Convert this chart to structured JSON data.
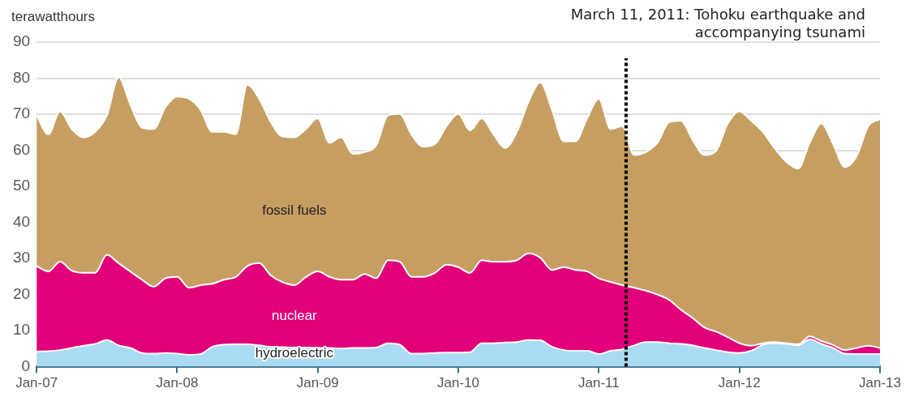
{
  "chart_data": {
    "type": "area",
    "stacked": true,
    "ylabel": "terawatthours",
    "grid": "y",
    "legend": false,
    "x": [
      "2007-01",
      "2007-02",
      "2007-03",
      "2007-04",
      "2007-05",
      "2007-06",
      "2007-07",
      "2007-08",
      "2007-09",
      "2007-10",
      "2007-11",
      "2007-12",
      "2008-01",
      "2008-02",
      "2008-03",
      "2008-04",
      "2008-05",
      "2008-06",
      "2008-07",
      "2008-08",
      "2008-09",
      "2008-10",
      "2008-11",
      "2008-12",
      "2009-01",
      "2009-02",
      "2009-03",
      "2009-04",
      "2009-05",
      "2009-06",
      "2009-07",
      "2009-08",
      "2009-09",
      "2009-10",
      "2009-11",
      "2009-12",
      "2010-01",
      "2010-02",
      "2010-03",
      "2010-04",
      "2010-05",
      "2010-06",
      "2010-07",
      "2010-08",
      "2010-09",
      "2010-10",
      "2010-11",
      "2010-12",
      "2011-01",
      "2011-02",
      "2011-03",
      "2011-04",
      "2011-05",
      "2011-06",
      "2011-07",
      "2011-08",
      "2011-09",
      "2011-10",
      "2011-11",
      "2011-12",
      "2012-01",
      "2012-02",
      "2012-03",
      "2012-04",
      "2012-05",
      "2012-06",
      "2012-07",
      "2012-08",
      "2012-09",
      "2012-10",
      "2012-11",
      "2012-12",
      "2013-01"
    ],
    "series": [
      {
        "name": "hydroelectric",
        "color": "#a9dbf3",
        "values": [
          4.2,
          4.3,
          4.6,
          5.2,
          5.8,
          6.3,
          7.4,
          5.9,
          5.2,
          3.8,
          3.6,
          3.8,
          3.6,
          3.3,
          3.5,
          5.5,
          6.1,
          6.2,
          6.2,
          5.9,
          5.5,
          5.4,
          5.3,
          5.3,
          5.2,
          5.2,
          5.0,
          5.2,
          5.2,
          5.3,
          6.5,
          6.1,
          3.6,
          3.6,
          3.8,
          3.9,
          3.9,
          4.0,
          6.5,
          6.5,
          6.7,
          6.8,
          7.4,
          7.3,
          5.5,
          4.6,
          4.4,
          4.4,
          3.5,
          4.4,
          4.8,
          5.9,
          6.8,
          6.8,
          6.5,
          6.3,
          5.9,
          5.2,
          4.6,
          4.0,
          3.8,
          4.4,
          6.1,
          6.5,
          6.3,
          5.9,
          7.6,
          6.3,
          5.2,
          3.6,
          3.5,
          3.5,
          3.5
        ]
      },
      {
        "name": "nuclear",
        "color": "#e2007a",
        "values": [
          23.7,
          22.1,
          24.5,
          21.4,
          20.2,
          19.7,
          23.6,
          22.8,
          21.2,
          20.3,
          18.6,
          20.7,
          21.3,
          18.6,
          19.1,
          17.5,
          18.0,
          18.7,
          21.7,
          22.8,
          19.8,
          18.0,
          17.3,
          19.6,
          21.2,
          19.7,
          19.1,
          18.9,
          20.5,
          19.2,
          23.0,
          23.0,
          21.3,
          21.3,
          22.2,
          24.4,
          23.7,
          22.0,
          23.0,
          22.6,
          22.4,
          22.7,
          24.0,
          22.9,
          21.3,
          23.0,
          22.4,
          22.0,
          21.0,
          19.1,
          17.8,
          16.0,
          14.3,
          13.2,
          12.0,
          9.5,
          7.6,
          5.7,
          5.1,
          4.2,
          2.7,
          1.4,
          0.4,
          0.3,
          0.2,
          0.3,
          0.8,
          0.8,
          0.8,
          1.0,
          1.7,
          2.3,
          1.7
        ]
      },
      {
        "name": "fossil fuels",
        "color": "#c79e62",
        "values": [
          41.8,
          38.0,
          41.7,
          39.3,
          37.6,
          39.1,
          38.7,
          51.6,
          46.3,
          42.2,
          43.7,
          47.5,
          50.0,
          52.4,
          48.6,
          42.1,
          41.0,
          39.6,
          50.3,
          45.6,
          42.5,
          40.4,
          41.0,
          41.0,
          42.5,
          37.2,
          39.5,
          34.9,
          33.8,
          36.9,
          40.2,
          41.0,
          39.5,
          36.1,
          35.7,
          38.4,
          42.5,
          39.5,
          39.4,
          35.3,
          31.5,
          35.6,
          42.1,
          48.6,
          44.4,
          34.9,
          35.7,
          42.5,
          49.8,
          42.4,
          44.1,
          36.8,
          38.4,
          42.1,
          49.3,
          52.4,
          49.4,
          47.8,
          50.1,
          59.2,
          64.3,
          62.4,
          58.6,
          53.8,
          50.3,
          48.7,
          53.7,
          60.3,
          55.7,
          50.7,
          53.1,
          60.9,
          63.4
        ]
      }
    ],
    "ylim": [
      0,
      90
    ],
    "yticks": [
      0,
      10,
      20,
      30,
      40,
      50,
      60,
      70,
      80,
      90
    ],
    "xlim": [
      "2007-01",
      "2013-01"
    ],
    "xticks": [
      {
        "value": "2007-01",
        "label": "Jan-07"
      },
      {
        "value": "2008-01",
        "label": "Jan-08"
      },
      {
        "value": "2009-01",
        "label": "Jan-09"
      },
      {
        "value": "2010-01",
        "label": "Jan-10"
      },
      {
        "value": "2011-01",
        "label": "Jan-11"
      },
      {
        "value": "2012-01",
        "label": "Jan-12"
      },
      {
        "value": "2013-01",
        "label": "Jan-13"
      }
    ],
    "ref_lines": [
      {
        "axis": "x",
        "value": "2011-03-11",
        "label": "March 11, 2011: Tohoku earthquake and accompanying tsunami",
        "color": "#000000",
        "line_style": "dotted"
      }
    ]
  }
}
